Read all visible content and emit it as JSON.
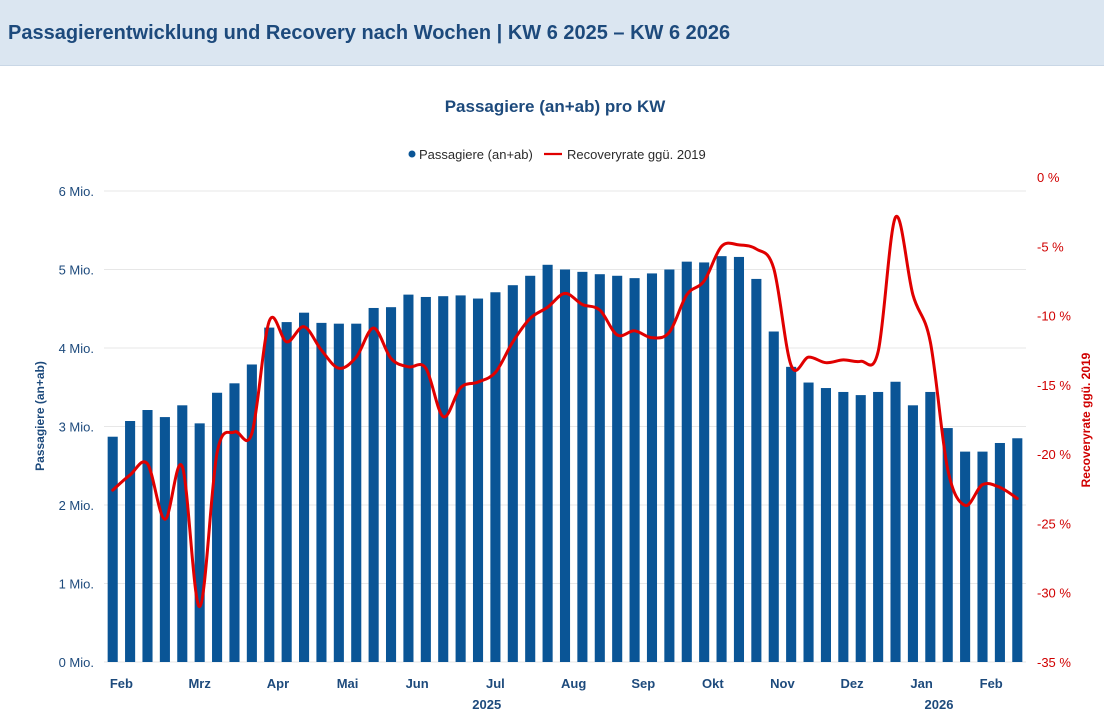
{
  "header": {
    "title": "Passagierentwicklung und Recovery nach Wochen | KW 6 2025 – KW 6 2026"
  },
  "colors": {
    "bar": "#0a5596",
    "line": "#e00000",
    "title": "#1d4a7c",
    "axis_left": "#1d4a7c",
    "axis_right": "#d00000",
    "grid": "#e7e7e7"
  },
  "chart_data": {
    "type": "bar",
    "title": "Passagiere (an+ab) pro KW",
    "legend": {
      "position": "top-center",
      "items": [
        "Passagiere (an+ab)",
        "Recoveryrate ggü. 2019"
      ]
    },
    "ylabel_left": "Passagiere (an+ab)",
    "ylabel_right": "Recoveryrate ggü. 2019",
    "y_left": {
      "min": 0,
      "max": 6,
      "ticks": [
        {
          "v": 0,
          "label": "0 Mio."
        },
        {
          "v": 1,
          "label": "1 Mio."
        },
        {
          "v": 2,
          "label": "2 Mio."
        },
        {
          "v": 3,
          "label": "3 Mio."
        },
        {
          "v": 4,
          "label": "4 Mio."
        },
        {
          "v": 5,
          "label": "5 Mio."
        },
        {
          "v": 6,
          "label": "6 Mio."
        }
      ]
    },
    "y_right": {
      "min": -35,
      "max": 0,
      "ticks": [
        {
          "v": 0,
          "label": "0 %"
        },
        {
          "v": -5,
          "label": "-5 %"
        },
        {
          "v": -10,
          "label": "-10 %"
        },
        {
          "v": -15,
          "label": "-15 %"
        },
        {
          "v": -20,
          "label": "-20 %"
        },
        {
          "v": -25,
          "label": "-25 %"
        },
        {
          "v": -30,
          "label": "-30 %"
        },
        {
          "v": -35,
          "label": "-35 %"
        }
      ]
    },
    "month_labels": [
      {
        "week": 0.5,
        "label": "Feb"
      },
      {
        "week": 5,
        "label": "Mrz"
      },
      {
        "week": 9.5,
        "label": "Apr"
      },
      {
        "week": 13.5,
        "label": "Mai"
      },
      {
        "week": 17.5,
        "label": "Jun"
      },
      {
        "week": 22,
        "label": "Jul"
      },
      {
        "week": 26.5,
        "label": "Aug"
      },
      {
        "week": 30.5,
        "label": "Sep"
      },
      {
        "week": 34.5,
        "label": "Okt"
      },
      {
        "week": 38.5,
        "label": "Nov"
      },
      {
        "week": 42.5,
        "label": "Dez"
      },
      {
        "week": 46.5,
        "label": "Jan"
      },
      {
        "week": 50.5,
        "label": "Feb"
      }
    ],
    "year_labels": [
      {
        "week": 21.5,
        "label": "2025"
      },
      {
        "week": 47.5,
        "label": "2026"
      }
    ],
    "series": [
      {
        "name": "Passagiere (an+ab)",
        "type": "bar",
        "unit": "Mio.",
        "values": [
          2.87,
          3.07,
          3.21,
          3.12,
          3.27,
          3.04,
          3.43,
          3.55,
          3.79,
          4.26,
          4.33,
          4.45,
          4.32,
          4.31,
          4.31,
          4.51,
          4.52,
          4.68,
          4.65,
          4.66,
          4.67,
          4.63,
          4.71,
          4.8,
          4.92,
          5.06,
          5.0,
          4.97,
          4.94,
          4.92,
          4.89,
          4.95,
          5.0,
          5.1,
          5.09,
          5.17,
          5.16,
          4.88,
          4.21,
          3.76,
          3.56,
          3.49,
          3.44,
          3.4,
          3.44,
          3.57,
          3.27,
          3.44,
          2.98,
          2.68,
          2.68,
          2.79,
          2.85
        ]
      },
      {
        "name": "Recoveryrate ggü. 2019",
        "type": "line",
        "unit": "%",
        "values": [
          -22.6,
          -21.5,
          -20.7,
          -24.7,
          -20.9,
          -31.0,
          -19.9,
          -18.4,
          -18.5,
          -10.4,
          -11.9,
          -10.8,
          -12.5,
          -13.8,
          -13.0,
          -10.9,
          -13.1,
          -13.7,
          -13.8,
          -17.3,
          -15.2,
          -14.8,
          -14.1,
          -11.9,
          -10.2,
          -9.4,
          -8.4,
          -9.2,
          -9.6,
          -11.4,
          -11.1,
          -11.6,
          -11.2,
          -8.5,
          -7.5,
          -5.0,
          -4.9,
          -5.2,
          -6.6,
          -13.6,
          -13.0,
          -13.4,
          -13.2,
          -13.3,
          -12.6,
          -2.9,
          -8.5,
          -11.9,
          -21.1,
          -23.7,
          -22.2,
          -22.4,
          -23.2
        ]
      }
    ]
  }
}
